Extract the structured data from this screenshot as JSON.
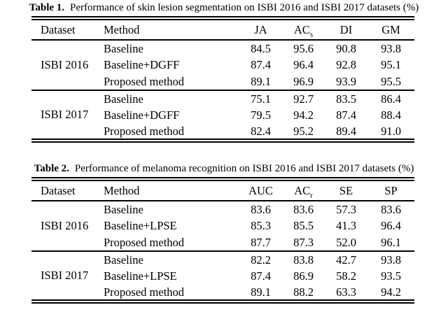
{
  "page": {
    "background": "#ffffff",
    "text_color": "#000000",
    "rule_color": "#000000"
  },
  "tables": [
    {
      "caption": {
        "label": "Table 1.",
        "text": "Performance of skin lesion segmentation on ISBI 2016 and ISBI 2017 datasets (%)"
      },
      "columns": [
        {
          "text": "Dataset",
          "sub": ""
        },
        {
          "text": "Method",
          "sub": ""
        },
        {
          "text": "JA",
          "sub": ""
        },
        {
          "text": "AC",
          "sub": "s"
        },
        {
          "text": "DI",
          "sub": ""
        },
        {
          "text": "GM",
          "sub": ""
        }
      ],
      "groups": [
        {
          "dataset": "ISBI 2016",
          "rows": [
            {
              "method": "Baseline",
              "method_bold": false,
              "values": [
                "84.5",
                "95.6",
                "90.8",
                "93.8"
              ],
              "bold": [
                false,
                false,
                false,
                false
              ]
            },
            {
              "method": "Baseline+DGFF",
              "method_bold": false,
              "values": [
                "87.4",
                "96.4",
                "92.8",
                "95.1"
              ],
              "bold": [
                false,
                false,
                false,
                false
              ]
            },
            {
              "method": "Proposed method",
              "method_bold": true,
              "values": [
                "89.1",
                "96.9",
                "93.9",
                "95.5"
              ],
              "bold": [
                true,
                true,
                true,
                true
              ]
            }
          ]
        },
        {
          "dataset": "ISBI 2017",
          "rows": [
            {
              "method": "Baseline",
              "method_bold": false,
              "values": [
                "75.1",
                "92.7",
                "83.5",
                "86.4"
              ],
              "bold": [
                false,
                false,
                false,
                false
              ]
            },
            {
              "method": "Baseline+DGFF",
              "method_bold": false,
              "values": [
                "79.5",
                "94.2",
                "87.4",
                "88.4"
              ],
              "bold": [
                false,
                false,
                false,
                false
              ]
            },
            {
              "method": "Proposed method",
              "method_bold": true,
              "values": [
                "82.4",
                "95.2",
                "89.4",
                "91.0"
              ],
              "bold": [
                true,
                true,
                true,
                true
              ]
            }
          ]
        }
      ]
    },
    {
      "caption": {
        "label": "Table 2.",
        "text": "Performance of melanoma recognition on ISBI 2016 and ISBI 2017 datasets (%)"
      },
      "columns": [
        {
          "text": "Dataset",
          "sub": ""
        },
        {
          "text": "Method",
          "sub": ""
        },
        {
          "text": "AUC",
          "sub": ""
        },
        {
          "text": "AC",
          "sub": "r"
        },
        {
          "text": "SE",
          "sub": ""
        },
        {
          "text": "SP",
          "sub": ""
        }
      ],
      "groups": [
        {
          "dataset": "ISBI 2016",
          "rows": [
            {
              "method": "Baseline",
              "method_bold": false,
              "values": [
                "83.6",
                "83.6",
                "57.3",
                "83.6"
              ],
              "bold": [
                false,
                false,
                true,
                false
              ]
            },
            {
              "method": "Baseline+LPSE",
              "method_bold": false,
              "values": [
                "85.3",
                "85.5",
                "41.3",
                "96.4"
              ],
              "bold": [
                false,
                false,
                false,
                true
              ]
            },
            {
              "method": "Proposed method",
              "method_bold": true,
              "values": [
                "87.7",
                "87.3",
                "52.0",
                "96.1"
              ],
              "bold": [
                true,
                true,
                false,
                false
              ]
            }
          ]
        },
        {
          "dataset": "ISBI 2017",
          "rows": [
            {
              "method": "Baseline",
              "method_bold": false,
              "values": [
                "82.2",
                "83.8",
                "42.7",
                "93.8"
              ],
              "bold": [
                false,
                false,
                false,
                false
              ]
            },
            {
              "method": "Baseline+LPSE",
              "method_bold": false,
              "values": [
                "87.4",
                "86.9",
                "58.2",
                "93.5"
              ],
              "bold": [
                false,
                false,
                false,
                false
              ]
            },
            {
              "method": "Proposed method",
              "method_bold": true,
              "values": [
                "89.1",
                "88.2",
                "63.3",
                "94.2"
              ],
              "bold": [
                true,
                true,
                true,
                true
              ]
            }
          ]
        }
      ]
    }
  ]
}
